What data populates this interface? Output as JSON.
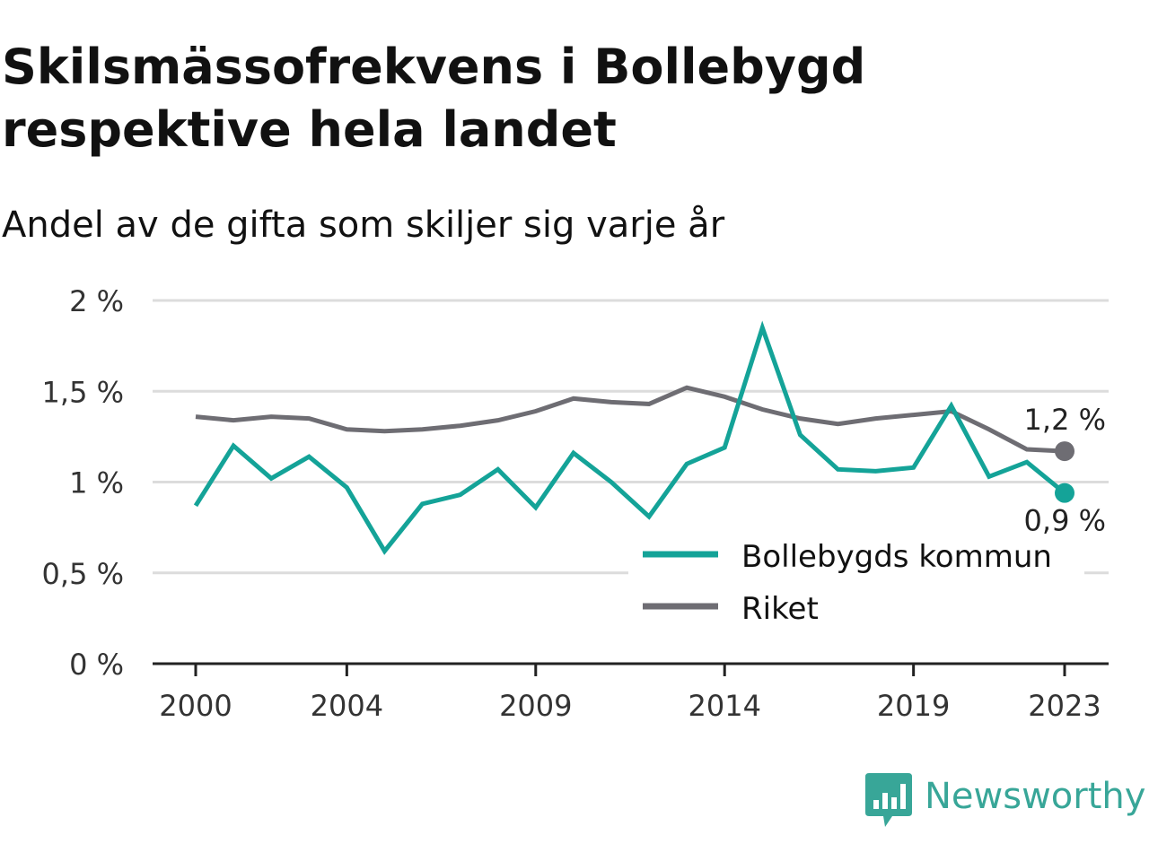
{
  "header": {
    "title": "Skilsmässofrekvens i Bollebygd respektive hela landet",
    "subtitle": "Andel av de gifta som skiljer sig varje år"
  },
  "brand": {
    "name": "Newsworthy",
    "icon": "bar-chart-icon",
    "color": "#38a698"
  },
  "chart_data": {
    "type": "line",
    "x": [
      2000,
      2001,
      2002,
      2003,
      2004,
      2005,
      2006,
      2007,
      2008,
      2009,
      2010,
      2011,
      2012,
      2013,
      2014,
      2015,
      2016,
      2017,
      2018,
      2019,
      2020,
      2021,
      2022,
      2023
    ],
    "series": [
      {
        "name": "Bollebygds kommun",
        "color": "#14a398",
        "values": [
          0.87,
          1.2,
          1.02,
          1.14,
          0.97,
          0.62,
          0.88,
          0.93,
          1.07,
          0.86,
          1.16,
          1.0,
          0.81,
          1.1,
          1.19,
          1.85,
          1.26,
          1.07,
          1.06,
          1.08,
          1.42,
          1.03,
          1.11,
          0.94
        ]
      },
      {
        "name": "Riket",
        "color": "#6e6d73",
        "values": [
          1.36,
          1.34,
          1.36,
          1.35,
          1.29,
          1.28,
          1.29,
          1.31,
          1.34,
          1.39,
          1.46,
          1.44,
          1.43,
          1.52,
          1.47,
          1.4,
          1.35,
          1.32,
          1.35,
          1.37,
          1.39,
          1.29,
          1.18,
          1.17
        ]
      }
    ],
    "end_labels": {
      "Bollebygds kommun": "0,9 %",
      "Riket": "1,2 %"
    },
    "xticks": [
      2000,
      2004,
      2009,
      2014,
      2019,
      2023
    ],
    "yticks": [
      0,
      0.5,
      1,
      1.5,
      2
    ],
    "ytick_labels": [
      "0 %",
      "0,5 %",
      "1 %",
      "1,5 %",
      "2 %"
    ],
    "ylim": [
      0,
      2
    ],
    "xlim": [
      2000,
      2023
    ],
    "grid": true,
    "legend_position": "bottom-right"
  }
}
